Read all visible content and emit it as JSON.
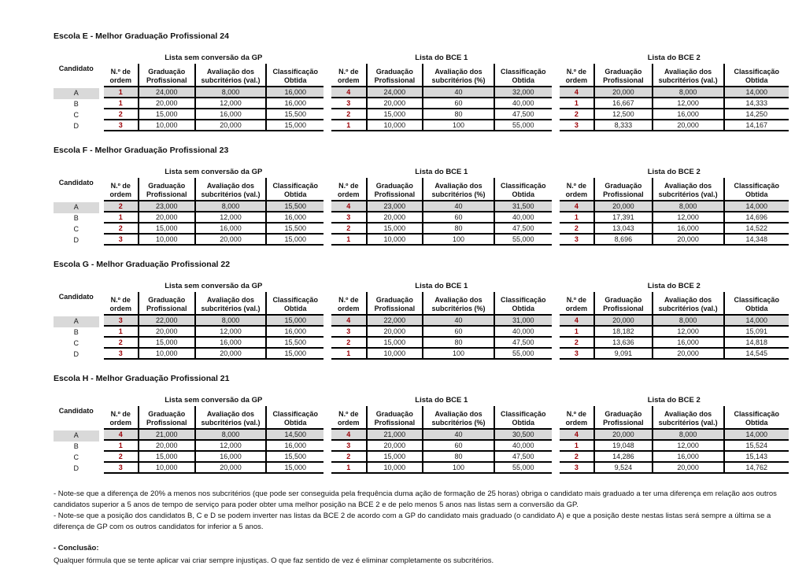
{
  "document": {
    "candidato_header": "Candidato",
    "groups": [
      {
        "title": "Lista sem conversão da GP",
        "columns": [
          "N.º de ordem",
          "Graduação Profissional",
          "Avaliação dos subcritérios (val.)",
          "Classificação Obtida"
        ]
      },
      {
        "title": "Lista do BCE 1",
        "columns": [
          "N.º de ordem",
          "Graduação Profissional",
          "Avaliação dos subcritérios (%)",
          "Classificação Obtida"
        ]
      },
      {
        "title": "Lista do BCE 2",
        "columns": [
          "N.º de ordem",
          "Graduação Profissional",
          "Avaliação dos subcritérios (val.)",
          "Classificação Obtida"
        ]
      }
    ],
    "schools": [
      {
        "title": "Escola E - Melhor Graduação Profissional 24",
        "rows": [
          {
            "candidato": "A",
            "highlight": true,
            "groups": [
              [
                "1",
                "24,000",
                "8,000",
                "16,000"
              ],
              [
                "4",
                "24,000",
                "40",
                "32,000"
              ],
              [
                "4",
                "20,000",
                "8,000",
                "14,000"
              ]
            ]
          },
          {
            "candidato": "B",
            "highlight": false,
            "groups": [
              [
                "1",
                "20,000",
                "12,000",
                "16,000"
              ],
              [
                "3",
                "20,000",
                "60",
                "40,000"
              ],
              [
                "1",
                "16,667",
                "12,000",
                "14,333"
              ]
            ]
          },
          {
            "candidato": "C",
            "highlight": false,
            "groups": [
              [
                "2",
                "15,000",
                "16,000",
                "15,500"
              ],
              [
                "2",
                "15,000",
                "80",
                "47,500"
              ],
              [
                "2",
                "12,500",
                "16,000",
                "14,250"
              ]
            ]
          },
          {
            "candidato": "D",
            "highlight": false,
            "groups": [
              [
                "3",
                "10,000",
                "20,000",
                "15,000"
              ],
              [
                "1",
                "10,000",
                "100",
                "55,000"
              ],
              [
                "3",
                "8,333",
                "20,000",
                "14,167"
              ]
            ]
          }
        ]
      },
      {
        "title": "Escola F - Melhor Graduação Profissional 23",
        "rows": [
          {
            "candidato": "A",
            "highlight": true,
            "groups": [
              [
                "2",
                "23,000",
                "8,000",
                "15,500"
              ],
              [
                "4",
                "23,000",
                "40",
                "31,500"
              ],
              [
                "4",
                "20,000",
                "8,000",
                "14,000"
              ]
            ]
          },
          {
            "candidato": "B",
            "highlight": false,
            "groups": [
              [
                "1",
                "20,000",
                "12,000",
                "16,000"
              ],
              [
                "3",
                "20,000",
                "60",
                "40,000"
              ],
              [
                "1",
                "17,391",
                "12,000",
                "14,696"
              ]
            ]
          },
          {
            "candidato": "C",
            "highlight": false,
            "groups": [
              [
                "2",
                "15,000",
                "16,000",
                "15,500"
              ],
              [
                "2",
                "15,000",
                "80",
                "47,500"
              ],
              [
                "2",
                "13,043",
                "16,000",
                "14,522"
              ]
            ]
          },
          {
            "candidato": "D",
            "highlight": false,
            "groups": [
              [
                "3",
                "10,000",
                "20,000",
                "15,000"
              ],
              [
                "1",
                "10,000",
                "100",
                "55,000"
              ],
              [
                "3",
                "8,696",
                "20,000",
                "14,348"
              ]
            ]
          }
        ]
      },
      {
        "title": "Escola G - Melhor Graduação Profissional 22",
        "rows": [
          {
            "candidato": "A",
            "highlight": true,
            "groups": [
              [
                "3",
                "22,000",
                "8,000",
                "15,000"
              ],
              [
                "4",
                "22,000",
                "40",
                "31,000"
              ],
              [
                "4",
                "20,000",
                "8,000",
                "14,000"
              ]
            ]
          },
          {
            "candidato": "B",
            "highlight": false,
            "groups": [
              [
                "1",
                "20,000",
                "12,000",
                "16,000"
              ],
              [
                "3",
                "20,000",
                "60",
                "40,000"
              ],
              [
                "1",
                "18,182",
                "12,000",
                "15,091"
              ]
            ]
          },
          {
            "candidato": "C",
            "highlight": false,
            "groups": [
              [
                "2",
                "15,000",
                "16,000",
                "15,500"
              ],
              [
                "2",
                "15,000",
                "80",
                "47,500"
              ],
              [
                "2",
                "13,636",
                "16,000",
                "14,818"
              ]
            ]
          },
          {
            "candidato": "D",
            "highlight": false,
            "groups": [
              [
                "3",
                "10,000",
                "20,000",
                "15,000"
              ],
              [
                "1",
                "10,000",
                "100",
                "55,000"
              ],
              [
                "3",
                "9,091",
                "20,000",
                "14,545"
              ]
            ]
          }
        ]
      },
      {
        "title": "Escola H - Melhor Graduação Profissional 21",
        "rows": [
          {
            "candidato": "A",
            "highlight": true,
            "groups": [
              [
                "4",
                "21,000",
                "8,000",
                "14,500"
              ],
              [
                "4",
                "21,000",
                "40",
                "30,500"
              ],
              [
                "4",
                "20,000",
                "8,000",
                "14,000"
              ]
            ]
          },
          {
            "candidato": "B",
            "highlight": false,
            "groups": [
              [
                "1",
                "20,000",
                "12,000",
                "16,000"
              ],
              [
                "3",
                "20,000",
                "60",
                "40,000"
              ],
              [
                "1",
                "19,048",
                "12,000",
                "15,524"
              ]
            ]
          },
          {
            "candidato": "C",
            "highlight": false,
            "groups": [
              [
                "2",
                "15,000",
                "16,000",
                "15,500"
              ],
              [
                "2",
                "15,000",
                "80",
                "47,500"
              ],
              [
                "2",
                "14,286",
                "16,000",
                "15,143"
              ]
            ]
          },
          {
            "candidato": "D",
            "highlight": false,
            "groups": [
              [
                "3",
                "10,000",
                "20,000",
                "15,000"
              ],
              [
                "1",
                "10,000",
                "100",
                "55,000"
              ],
              [
                "3",
                "9,524",
                "20,000",
                "14,762"
              ]
            ]
          }
        ]
      }
    ],
    "footnotes": [
      "- Note-se que a diferença de 20% a menos nos subcritérios (que pode ser conseguida pela frequência duma ação de formação de 25 horas) obriga o candidato mais graduado a ter uma diferença em relação aos outros candidatos superior a 5 anos de tempo de serviço para poder obter uma melhor posição na BCE 2 e de pelo menos 5 anos nas listas sem a conversão da GP.",
      "- Note-se que a posição dos candidatos B, C e D se podem inverter nas listas da BCE 2 de acordo com a GP do candidato mais graduado (o candidato A) e que a posição deste nestas listas será sempre a última se a diferença de GP com os outros candidatos for inferior a 5 anos."
    ],
    "conclusion": {
      "label": "- Conclusão:",
      "text": "Qualquer fórmula que se tente aplicar vai criar sempre injustiças. O que faz sentido de vez é eliminar completamente os subcritérios."
    },
    "colors": {
      "order_number": "#9C0006",
      "highlight_row": "#D9D9D9",
      "border": "#000000"
    }
  }
}
